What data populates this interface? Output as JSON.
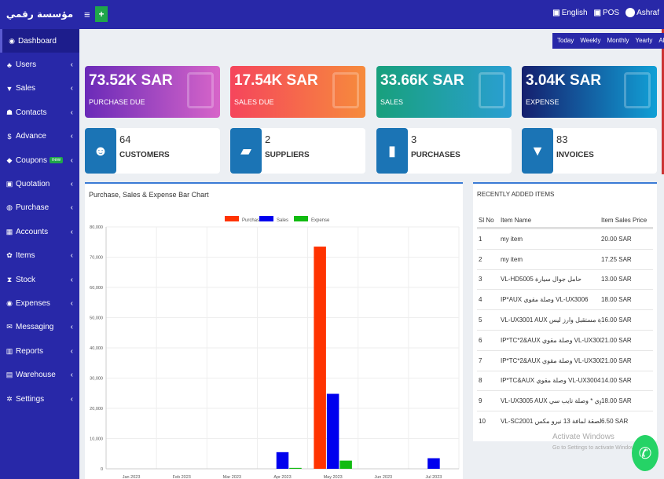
{
  "brand": "مؤسسة رقمي تقنية",
  "topbar": {
    "plus": "+",
    "lang": "English",
    "pos": "POS",
    "user": "Ashraf"
  },
  "sidebar": [
    {
      "label": "Dashboard",
      "icon": "dashboard-icon",
      "glyph": "◉"
    },
    {
      "label": "Users",
      "icon": "users-icon",
      "glyph": "♣"
    },
    {
      "label": "Sales",
      "icon": "cart-icon",
      "glyph": "▼"
    },
    {
      "label": "Contacts",
      "icon": "contacts-icon",
      "glyph": "☗"
    },
    {
      "label": "Advance",
      "icon": "dollar-icon",
      "glyph": "$"
    },
    {
      "label": "Coupons",
      "icon": "coupon-icon",
      "glyph": "◆",
      "badge": "new"
    },
    {
      "label": "Quotation",
      "icon": "calendar-icon",
      "glyph": "▣"
    },
    {
      "label": "Purchase",
      "icon": "purchase-icon",
      "glyph": "◍"
    },
    {
      "label": "Accounts",
      "icon": "accounts-icon",
      "glyph": "▦"
    },
    {
      "label": "Items",
      "icon": "items-icon",
      "glyph": "✿"
    },
    {
      "label": "Stock",
      "icon": "stock-icon",
      "glyph": "⧗"
    },
    {
      "label": "Expenses",
      "icon": "expenses-icon",
      "glyph": "◉"
    },
    {
      "label": "Messaging",
      "icon": "message-icon",
      "glyph": "✉"
    },
    {
      "label": "Reports",
      "icon": "reports-icon",
      "glyph": "▥"
    },
    {
      "label": "Warehouse",
      "icon": "warehouse-icon",
      "glyph": "▤"
    },
    {
      "label": "Settings",
      "icon": "settings-icon",
      "glyph": "✲"
    }
  ],
  "filters": [
    "Today",
    "Weekly",
    "Monthly",
    "Yearly",
    "All"
  ],
  "stats": [
    {
      "amount": "73.52K SAR",
      "label": "PURCHASE DUE"
    },
    {
      "amount": "17.54K SAR",
      "label": "SALES DUE"
    },
    {
      "amount": "33.66K SAR",
      "label": "SALES"
    },
    {
      "amount": "3.04K SAR",
      "label": "EXPENSE"
    }
  ],
  "counts": [
    {
      "num": "64",
      "label": "CUSTOMERS",
      "icon": "customers-icon",
      "glyph": "☻"
    },
    {
      "num": "2",
      "label": "SUPPLIERS",
      "icon": "truck-icon",
      "glyph": "▰"
    },
    {
      "num": "3",
      "label": "PURCHASES",
      "icon": "briefcase-icon",
      "glyph": "▮"
    },
    {
      "num": "83",
      "label": "INVOICES",
      "icon": "cart-icon",
      "glyph": "▼"
    }
  ],
  "chart_panel_title": "Purchase, Sales & Expense Bar Chart",
  "chart_data": {
    "type": "bar",
    "categories": [
      "Jan 2023",
      "Feb 2023",
      "Mar 2023",
      "Apr 2023",
      "May 2023",
      "Jun 2023",
      "Jul 2023"
    ],
    "series": [
      {
        "name": "Purchase",
        "color": "#ff3300",
        "values": [
          0,
          0,
          0,
          0,
          73500,
          0,
          0
        ]
      },
      {
        "name": "Sales",
        "color": "#0000ee",
        "values": [
          0,
          0,
          0,
          5500,
          24800,
          0,
          3500
        ]
      },
      {
        "name": "Expense",
        "color": "#11bb11",
        "values": [
          0,
          0,
          0,
          300,
          2700,
          0,
          0
        ]
      }
    ],
    "yticks": [
      "0",
      "10,000",
      "20,000",
      "30,000",
      "40,000",
      "50,000",
      "60,000",
      "70,000",
      "80,000"
    ],
    "ylim": [
      0,
      80000
    ],
    "legend": "top-center"
  },
  "items_panel": {
    "title": "RECENTLY ADDED ITEMS",
    "headers": [
      "Sl No",
      "Item Name",
      "Item Sales Price"
    ],
    "rows": [
      [
        "1",
        "my item",
        "20.00 SAR"
      ],
      [
        "2",
        "my item",
        "17.25 SAR"
      ],
      [
        "3",
        "VL-HD5005 حامل جوال سيارة",
        "13.00 SAR"
      ],
      [
        "4",
        "IP*AUX وصلة مقوي VL-UX3006",
        "18.00 SAR"
      ],
      [
        "5",
        "VL-UX3001 AUX للسيارة مستقبل وارز ليس",
        "16.00 SAR"
      ],
      [
        "6",
        "IP*TC*2&AUX وصلة مقوي VL-UX3002",
        "21.00 SAR"
      ],
      [
        "7",
        "IP*TC*2&AUX وصلة مقوي VL-UX3003",
        "21.00 SAR"
      ],
      [
        "8",
        "IP*TC&AUX وصلة مقوي VL-UX3004",
        "14.00 SAR"
      ],
      [
        "9",
        "VL-UX3005 AUX مقوي * وصلة تايب سي",
        "18.00 SAR"
      ],
      [
        "10",
        "VL-SC2001 لصقة لمافة 13 نيرو مكس",
        "6.50 SAR"
      ]
    ]
  },
  "watermark": {
    "line1": "Activate Windows",
    "line2": "Go to Settings to activate Windows."
  }
}
